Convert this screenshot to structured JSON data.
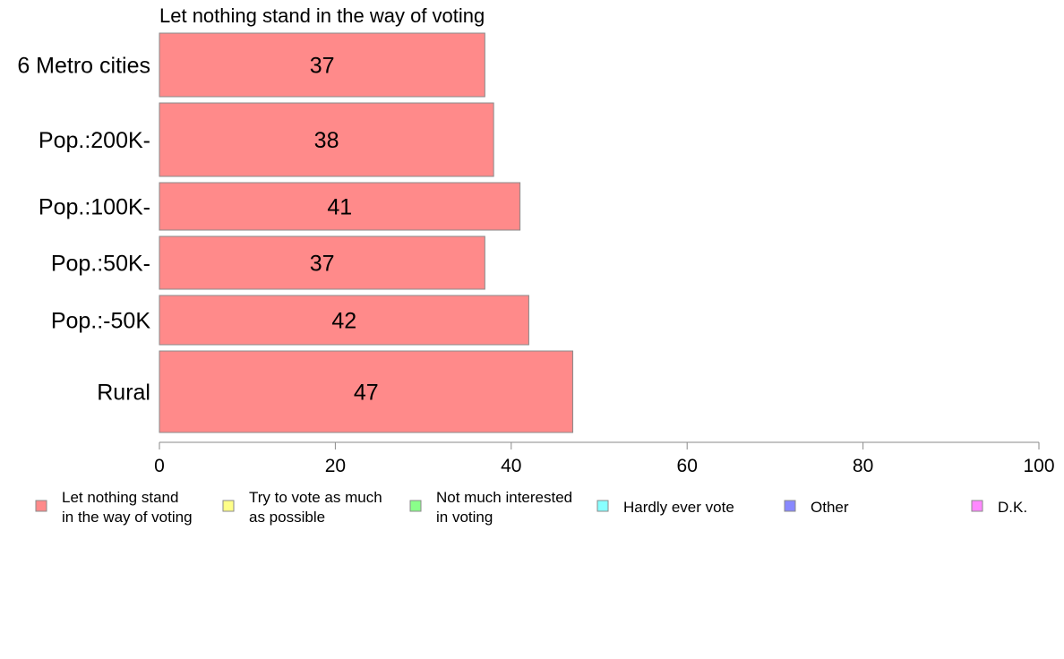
{
  "chart_data": {
    "type": "bar",
    "orientation": "horizontal",
    "title": "Let nothing stand in the way of voting",
    "xlabel": "",
    "ylabel": "",
    "xlim": [
      0,
      100
    ],
    "ticks": [
      0,
      20,
      40,
      60,
      80,
      100
    ],
    "grid": false,
    "legend_position": "bottom",
    "categories": [
      "6 Metro cities",
      "Pop.:200K-",
      "Pop.:100K-",
      "Pop.:50K-",
      "Pop.:-50K",
      "Rural"
    ],
    "series": [
      {
        "name": "Let nothing stand in the way of voting",
        "values": [
          37,
          38,
          41,
          37,
          42,
          47
        ],
        "color": "#ff8a8a"
      }
    ],
    "legend": [
      {
        "lines": [
          "Let nothing stand",
          "in the way of voting"
        ],
        "color": "#ff8a8a"
      },
      {
        "lines": [
          "Try to vote as much",
          "as possible"
        ],
        "color": "#ffff88"
      },
      {
        "lines": [
          "Not much interested",
          "in voting"
        ],
        "color": "#8aff8a"
      },
      {
        "lines": [
          "Hardly ever vote"
        ],
        "color": "#88ffff"
      },
      {
        "lines": [
          "Other"
        ],
        "color": "#8888ff"
      },
      {
        "lines": [
          "D.K."
        ],
        "color": "#ff88ff"
      }
    ]
  }
}
